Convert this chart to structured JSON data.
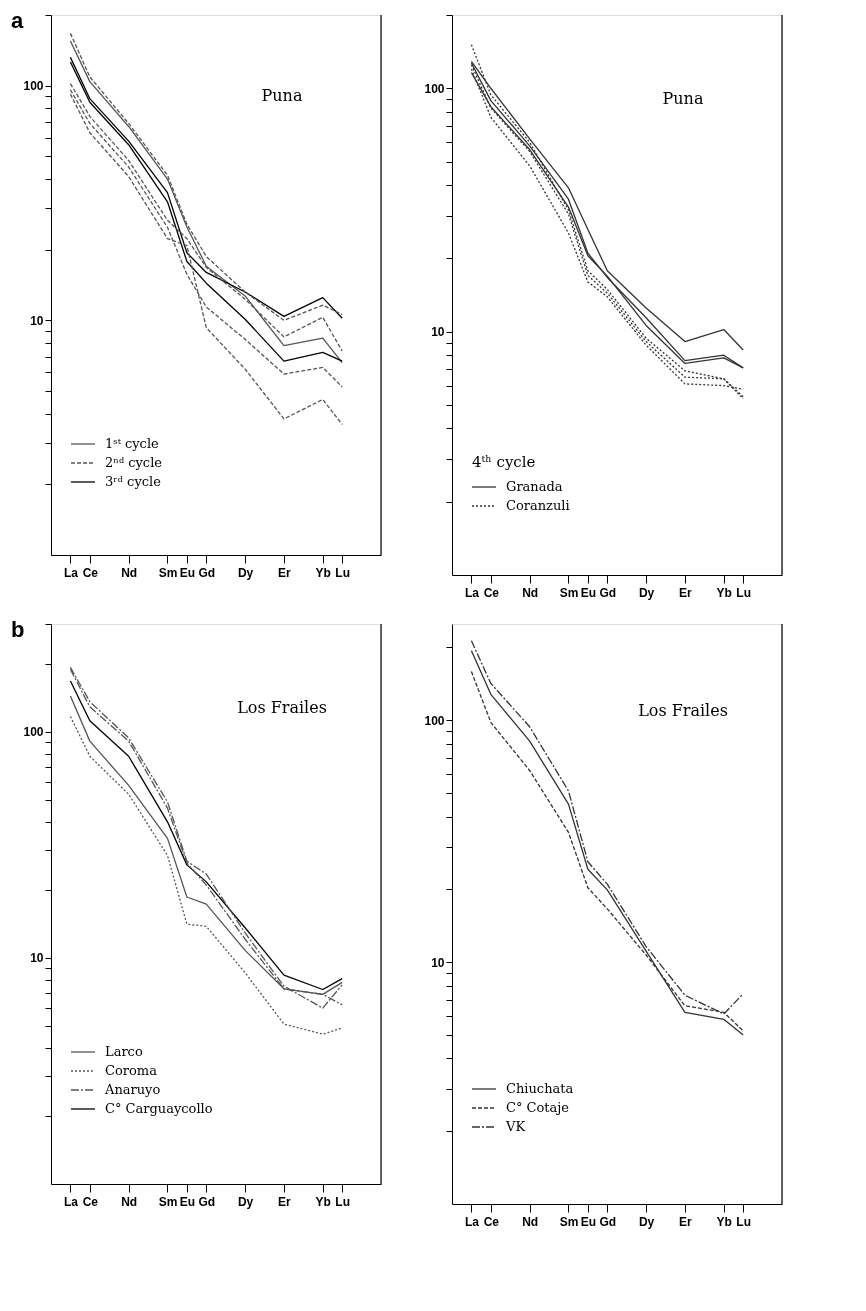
{
  "chart_data": [
    {
      "type": "line",
      "title": "Puna",
      "annotations": [
        "a"
      ],
      "legend": "bottom left",
      "log": true,
      "grid": false,
      "categories": [
        "La",
        "Ce",
        null,
        "Nd",
        null,
        "Sm",
        "Eu",
        "Gd",
        null,
        "Dy",
        null,
        "Er",
        null,
        "Yb",
        "Lu"
      ],
      "ylim": [
        1,
        200
      ],
      "yticks": [
        {
          "value": 2,
          "label": null
        },
        {
          "value": 3,
          "label": null
        },
        {
          "value": 4,
          "label": null
        },
        {
          "value": 5,
          "label": null
        },
        {
          "value": 6,
          "label": null
        },
        {
          "value": 7,
          "label": null
        },
        {
          "value": 8,
          "label": null
        },
        {
          "value": 9,
          "label": null
        },
        10,
        {
          "value": 20,
          "label": null
        },
        {
          "value": 30,
          "label": null
        },
        {
          "value": 40,
          "label": null
        },
        {
          "value": 50,
          "label": null
        },
        {
          "value": 60,
          "label": null
        },
        {
          "value": 70,
          "label": null
        },
        {
          "value": 80,
          "label": null
        },
        {
          "value": 90,
          "label": null
        },
        100,
        {
          "value": 200,
          "label": null
        }
      ],
      "series": [
        {
          "name": "1ˢᵗ cycle",
          "color": "#555555",
          "line_style": "solid",
          "values": [
            155,
            104,
            null,
            67,
            null,
            40,
            25,
            17,
            null,
            12.7,
            null,
            7.8,
            null,
            8.4,
            6.6
          ]
        },
        {
          "name": "2ⁿᵈ cycle",
          "color": "#555555",
          "line_style": "dashed",
          "values": [
            167,
            109,
            null,
            69,
            null,
            41.5,
            25.7,
            18.7,
            null,
            13.2,
            null,
            10.0,
            null,
            11.6,
            10.6
          ]
        },
        {
          "color": "#555555",
          "line_style": "dashed",
          "values": [
            102,
            74,
            null,
            48,
            null,
            26.7,
            22.3,
            16.8,
            null,
            12.3,
            null,
            8.5,
            null,
            10.3,
            7.4
          ]
        },
        {
          "color": "#555555",
          "line_style": "dashed",
          "values": [
            96,
            69,
            null,
            45,
            null,
            24.9,
            15.7,
            11.4,
            null,
            8.3,
            null,
            5.9,
            null,
            6.3,
            5.2
          ]
        },
        {
          "color": "#555555",
          "line_style": "dashed",
          "values": [
            92,
            63,
            null,
            41,
            null,
            22.3,
            20.8,
            9.3,
            null,
            6.2,
            null,
            3.8,
            null,
            4.6,
            3.6
          ]
        },
        {
          "name": "3ʳᵈ cycle",
          "color": "#000000",
          "line_style": "solid",
          "values": [
            132,
            88,
            null,
            58,
            null,
            35,
            19.4,
            16,
            null,
            13.2,
            null,
            10.4,
            null,
            12.5,
            10.2
          ]
        },
        {
          "color": "#000000",
          "line_style": "solid",
          "values": [
            126,
            85,
            null,
            56,
            null,
            32,
            17.8,
            14.4,
            null,
            10.1,
            null,
            6.7,
            null,
            7.3,
            6.7
          ]
        }
      ]
    },
    {
      "type": "line",
      "title": "Puna",
      "legend_title": "4ᵗʰ cycle",
      "legend": "bottom left",
      "log": true,
      "grid": false,
      "categories": [
        "La",
        "Ce",
        null,
        "Nd",
        null,
        "Sm",
        "Eu",
        "Gd",
        null,
        "Dy",
        null,
        "Er",
        null,
        "Yb",
        "Lu"
      ],
      "ylim": [
        1,
        200
      ],
      "yticks": [
        {
          "value": 2,
          "label": null
        },
        {
          "value": 3,
          "label": null
        },
        {
          "value": 4,
          "label": null
        },
        {
          "value": 5,
          "label": null
        },
        {
          "value": 6,
          "label": null
        },
        {
          "value": 7,
          "label": null
        },
        {
          "value": 8,
          "label": null
        },
        {
          "value": 9,
          "label": null
        },
        10,
        {
          "value": 20,
          "label": null
        },
        {
          "value": 30,
          "label": null
        },
        {
          "value": 40,
          "label": null
        },
        {
          "value": 50,
          "label": null
        },
        {
          "value": 60,
          "label": null
        },
        {
          "value": 70,
          "label": null
        },
        {
          "value": 80,
          "label": null
        },
        {
          "value": 90,
          "label": null
        },
        100,
        {
          "value": 200,
          "label": null
        }
      ],
      "series": [
        {
          "name": "Granada",
          "color": "#333333",
          "line_style": "solid",
          "values": [
            129,
            100,
            null,
            62,
            null,
            39,
            26.3,
            17.8,
            null,
            12.5,
            null,
            9.1,
            null,
            10.2,
            8.4
          ]
        },
        {
          "color": "#333333",
          "line_style": "solid",
          "values": [
            127,
            89,
            null,
            58,
            null,
            35,
            21,
            16.7,
            null,
            11.4,
            null,
            7.6,
            null,
            8.0,
            7.1
          ]
        },
        {
          "color": "#333333",
          "line_style": "solid",
          "values": [
            116,
            84,
            null,
            56,
            null,
            32.5,
            20.5,
            16.9,
            null,
            10.6,
            null,
            7.4,
            null,
            7.8,
            7.1
          ]
        },
        {
          "name": "Coranzuli",
          "color": "#333333",
          "line_style": "dotted",
          "values": [
            151,
            94,
            null,
            60,
            null,
            31.6,
            17.8,
            14.9,
            null,
            9.4,
            null,
            6.9,
            null,
            6.4,
            5.3
          ]
        },
        {
          "color": "#333333",
          "line_style": "dotted",
          "values": [
            125,
            83,
            null,
            55,
            null,
            30.4,
            17.0,
            14.4,
            null,
            9.1,
            null,
            6.5,
            null,
            6.4,
            5.4
          ]
        },
        {
          "color": "#333333",
          "line_style": "dotted",
          "values": [
            120,
            76,
            null,
            48,
            null,
            25.4,
            16.0,
            13.9,
            null,
            8.8,
            null,
            6.1,
            null,
            6.0,
            5.8
          ]
        }
      ]
    },
    {
      "type": "line",
      "title": "Los Frailes",
      "annotations": [
        "b"
      ],
      "legend": "bottom left",
      "log": true,
      "grid": false,
      "categories": [
        "La",
        "Ce",
        null,
        "Nd",
        null,
        "Sm",
        "Eu",
        "Gd",
        null,
        "Dy",
        null,
        "Er",
        null,
        "Yb",
        "Lu"
      ],
      "ylim": [
        1,
        300
      ],
      "yticks": [
        {
          "value": 2,
          "label": null
        },
        {
          "value": 3,
          "label": null
        },
        {
          "value": 4,
          "label": null
        },
        {
          "value": 5,
          "label": null
        },
        {
          "value": 6,
          "label": null
        },
        {
          "value": 7,
          "label": null
        },
        {
          "value": 8,
          "label": null
        },
        {
          "value": 9,
          "label": null
        },
        10,
        {
          "value": 20,
          "label": null
        },
        {
          "value": 30,
          "label": null
        },
        {
          "value": 40,
          "label": null
        },
        {
          "value": 50,
          "label": null
        },
        {
          "value": 60,
          "label": null
        },
        {
          "value": 70,
          "label": null
        },
        {
          "value": 80,
          "label": null
        },
        {
          "value": 90,
          "label": null
        },
        100,
        {
          "value": 200,
          "label": null
        },
        {
          "value": 300,
          "label": null
        }
      ],
      "series": [
        {
          "name": "Larco",
          "color": "#555555",
          "line_style": "solid",
          "values": [
            144,
            91,
            null,
            58,
            null,
            33.8,
            18.6,
            17.3,
            null,
            10.8,
            null,
            7.3,
            null,
            6.9,
            7.8
          ]
        },
        {
          "name": "Coroma",
          "color": "#555555",
          "line_style": "dotted",
          "values": [
            117,
            78,
            null,
            53,
            null,
            28.4,
            14.1,
            13.8,
            null,
            8.6,
            null,
            5.1,
            null,
            4.6,
            4.9
          ]
        },
        {
          "name": "Anaruyo",
          "color": "#555555",
          "line_style": "dashdot",
          "values": [
            193,
            136,
            null,
            94,
            null,
            49,
            26.8,
            23.5,
            null,
            12.9,
            null,
            7.5,
            null,
            6.0,
            7.6
          ]
        },
        {
          "color": "#555555",
          "line_style": "dashdot",
          "values": [
            189,
            129,
            null,
            91,
            null,
            46,
            26.3,
            21,
            null,
            12.1,
            null,
            7.3,
            null,
            6.9,
            6.2
          ]
        },
        {
          "name": "C° Carguaycollo",
          "color": "#000000",
          "line_style": "solid",
          "values": [
            168,
            112,
            null,
            78,
            null,
            40,
            25.8,
            21.7,
            null,
            13.6,
            null,
            8.4,
            null,
            7.25,
            8.1
          ]
        }
      ]
    },
    {
      "type": "line",
      "title": "Los Frailes",
      "legend": "bottom left",
      "log": true,
      "grid": false,
      "categories": [
        "La",
        "Ce",
        null,
        "Nd",
        null,
        "Sm",
        "Eu",
        "Gd",
        null,
        "Dy",
        null,
        "Er",
        null,
        "Yb",
        "Lu"
      ],
      "ylim": [
        1,
        250
      ],
      "yticks": [
        {
          "value": 2,
          "label": null
        },
        {
          "value": 3,
          "label": null
        },
        {
          "value": 4,
          "label": null
        },
        {
          "value": 5,
          "label": null
        },
        {
          "value": 6,
          "label": null
        },
        {
          "value": 7,
          "label": null
        },
        {
          "value": 8,
          "label": null
        },
        {
          "value": 9,
          "label": null
        },
        10,
        {
          "value": 20,
          "label": null
        },
        {
          "value": 30,
          "label": null
        },
        {
          "value": 40,
          "label": null
        },
        {
          "value": 50,
          "label": null
        },
        {
          "value": 60,
          "label": null
        },
        {
          "value": 70,
          "label": null
        },
        {
          "value": 80,
          "label": null
        },
        {
          "value": 90,
          "label": null
        },
        100,
        {
          "value": 200,
          "label": null
        }
      ],
      "series": [
        {
          "name": "Chiuchata",
          "color": "#333333",
          "line_style": "solid",
          "values": [
            194,
            128,
            null,
            82,
            null,
            45,
            24.2,
            19.9,
            null,
            11.1,
            null,
            6.2,
            null,
            5.8,
            5.0
          ]
        },
        {
          "name": "C° Cotaje",
          "color": "#333333",
          "line_style": "dashed",
          "values": [
            159,
            98,
            null,
            62,
            null,
            34.4,
            20.3,
            16.6,
            null,
            10.7,
            null,
            6.6,
            null,
            6.2,
            5.2
          ]
        },
        {
          "name": "VK",
          "color": "#333333",
          "line_style": "dashdot",
          "values": [
            213,
            142,
            null,
            94,
            null,
            51,
            26,
            21,
            null,
            11.6,
            null,
            7.3,
            null,
            6.1,
            7.4
          ]
        }
      ]
    }
  ]
}
